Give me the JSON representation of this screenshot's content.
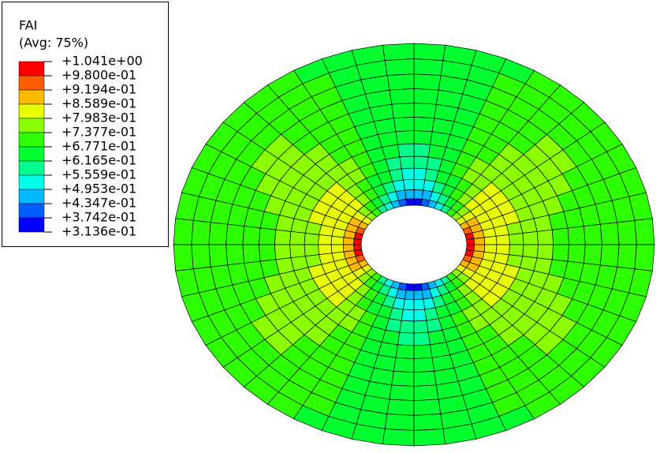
{
  "legend": {
    "title": "FAI",
    "subtitle": "(Avg: 75%)",
    "labels": [
      "+1.041e+00",
      "+9.800e-01",
      "+9.194e-01",
      "+8.589e-01",
      "+7.983e-01",
      "+7.377e-01",
      "+6.771e-01",
      "+6.165e-01",
      "+5.559e-01",
      "+4.953e-01",
      "+4.347e-01",
      "+3.742e-01",
      "+3.136e-01"
    ],
    "colors": [
      "#ff0000",
      "#ff5d00",
      "#ffb900",
      "#e8ff00",
      "#8bff00",
      "#2eff00",
      "#00ff2e",
      "#00ff8b",
      "#00ffe8",
      "#00b9ff",
      "#005dff",
      "#0000ff"
    ]
  }
}
